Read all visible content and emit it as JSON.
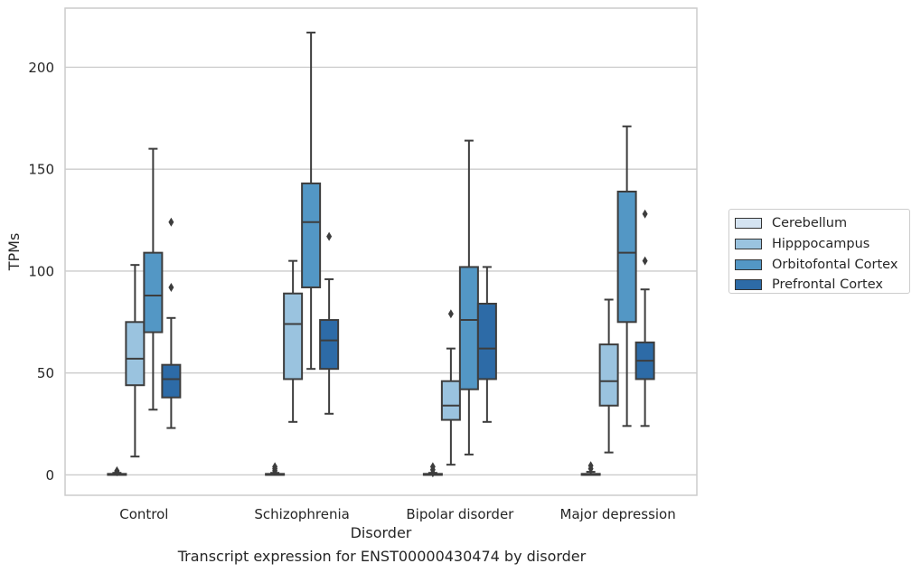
{
  "caption": "Transcript expression for ENST00000430474 by disorder",
  "chart_data": {
    "type": "box",
    "xlabel": "Disorder",
    "ylabel": "TPMs",
    "ylim": [
      -10,
      229
    ],
    "yticks": [
      0,
      50,
      100,
      150,
      200
    ],
    "grid": "horizontal",
    "legend_position": "right",
    "categories": [
      "Control",
      "Schizophrenia",
      "Bipolar disorder",
      "Major depression"
    ],
    "series": [
      {
        "name": "Cerebellum",
        "color": "#d4e3f1",
        "boxes": [
          {
            "min": 0,
            "q1": 0,
            "median": 0,
            "q3": 0.5,
            "max": 1,
            "outliers": [
              1.5,
              2
            ]
          },
          {
            "min": 0,
            "q1": 0,
            "median": 0,
            "q3": 0.5,
            "max": 1,
            "outliers": [
              2,
              3,
              4
            ]
          },
          {
            "min": 0,
            "q1": 0,
            "median": 0,
            "q3": 0.5,
            "max": 1,
            "outliers": [
              1,
              2.5,
              4
            ]
          },
          {
            "min": 0,
            "q1": 0,
            "median": 0,
            "q3": 0.5,
            "max": 1.5,
            "outliers": [
              3,
              4.5
            ]
          }
        ]
      },
      {
        "name": "Hipppocampus",
        "color": "#9ac3df",
        "boxes": [
          {
            "min": 9,
            "q1": 44,
            "median": 57,
            "q3": 75,
            "max": 103,
            "outliers": []
          },
          {
            "min": 26,
            "q1": 47,
            "median": 74,
            "q3": 89,
            "max": 105,
            "outliers": []
          },
          {
            "min": 5,
            "q1": 27,
            "median": 34,
            "q3": 46,
            "max": 62,
            "outliers": [
              79
            ]
          },
          {
            "min": 11,
            "q1": 34,
            "median": 46,
            "q3": 64,
            "max": 86,
            "outliers": []
          }
        ]
      },
      {
        "name": "Orbitofontal Cortex",
        "color": "#5397c5",
        "boxes": [
          {
            "min": 32,
            "q1": 70,
            "median": 88,
            "q3": 109,
            "max": 160,
            "outliers": []
          },
          {
            "min": 52,
            "q1": 92,
            "median": 124,
            "q3": 143,
            "max": 217,
            "outliers": []
          },
          {
            "min": 10,
            "q1": 42,
            "median": 76,
            "q3": 102,
            "max": 164,
            "outliers": []
          },
          {
            "min": 24,
            "q1": 75,
            "median": 109,
            "q3": 139,
            "max": 171,
            "outliers": []
          }
        ]
      },
      {
        "name": "Prefrontal Cortex",
        "color": "#2d6ba7",
        "boxes": [
          {
            "min": 23,
            "q1": 38,
            "median": 47,
            "q3": 54,
            "max": 77,
            "outliers": [
              92,
              124
            ]
          },
          {
            "min": 30,
            "q1": 52,
            "median": 66,
            "q3": 76,
            "max": 96,
            "outliers": [
              117
            ]
          },
          {
            "min": 26,
            "q1": 47,
            "median": 62,
            "q3": 84,
            "max": 102,
            "outliers": []
          },
          {
            "min": 24,
            "q1": 47,
            "median": 56,
            "q3": 65,
            "max": 91,
            "outliers": [
              105,
              128
            ]
          }
        ]
      }
    ]
  }
}
